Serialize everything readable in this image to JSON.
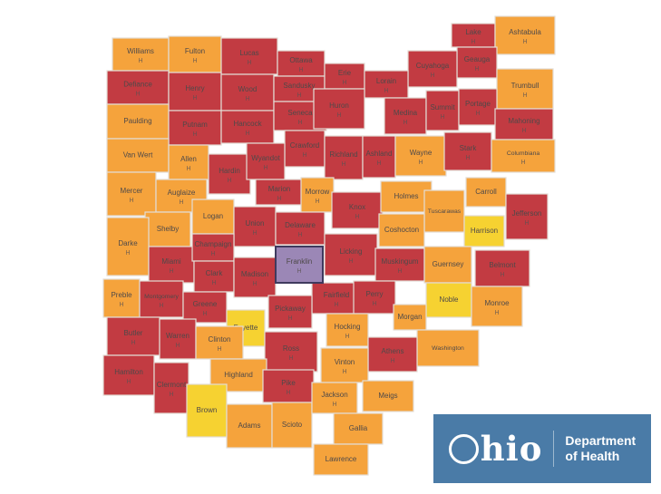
{
  "map": {
    "region_name": "Ohio",
    "marker_label": "H",
    "colors": {
      "red": "#c23b42",
      "orange": "#f5a33c",
      "yellow": "#f6d231",
      "purple": "#9b87b6",
      "border": "#e3ddd6",
      "purple_border": "#3f3a5e",
      "label": "#4e4949"
    },
    "counties": [
      {
        "n": "Williams",
        "lv": "orange",
        "hf": true,
        "r": [
          124,
          42,
          62,
          36
        ]
      },
      {
        "n": "Fulton",
        "lv": "orange",
        "hf": true,
        "r": [
          186,
          40,
          58,
          40
        ]
      },
      {
        "n": "Lucas",
        "lv": "red",
        "hf": true,
        "r": [
          244,
          42,
          62,
          40
        ]
      },
      {
        "n": "Ottawa",
        "lv": "red",
        "hf": true,
        "r": [
          306,
          56,
          52,
          28
        ]
      },
      {
        "n": "Lake",
        "lv": "red",
        "hf": true,
        "r": [
          498,
          26,
          48,
          26
        ]
      },
      {
        "n": "Ashtabula",
        "lv": "orange",
        "hf": true,
        "r": [
          546,
          18,
          66,
          42
        ]
      },
      {
        "n": "Geauga",
        "lv": "red",
        "hf": true,
        "r": [
          504,
          52,
          44,
          34
        ]
      },
      {
        "n": "Cuyahoga",
        "lv": "red",
        "hf": true,
        "r": [
          450,
          56,
          54,
          40
        ]
      },
      {
        "n": "Defiance",
        "lv": "red",
        "hf": true,
        "r": [
          118,
          78,
          68,
          37
        ]
      },
      {
        "n": "Henry",
        "lv": "red",
        "hf": true,
        "r": [
          186,
          80,
          58,
          42
        ]
      },
      {
        "n": "Wood",
        "lv": "red",
        "hf": true,
        "r": [
          244,
          82,
          58,
          40
        ]
      },
      {
        "n": "Sandusky",
        "lv": "red",
        "hf": true,
        "r": [
          302,
          84,
          56,
          28
        ]
      },
      {
        "n": "Erie",
        "lv": "red",
        "hf": true,
        "r": [
          358,
          70,
          44,
          28
        ]
      },
      {
        "n": "Lorain",
        "lv": "red",
        "hf": true,
        "r": [
          402,
          78,
          48,
          30
        ]
      },
      {
        "n": "Trumbull",
        "lv": "orange",
        "hf": true,
        "r": [
          548,
          76,
          62,
          44
        ]
      },
      {
        "n": "Medina",
        "lv": "red",
        "hf": true,
        "r": [
          424,
          108,
          46,
          40
        ]
      },
      {
        "n": "Summit",
        "lv": "red",
        "hf": true,
        "r": [
          470,
          100,
          36,
          44
        ]
      },
      {
        "n": "Portage",
        "lv": "red",
        "hf": true,
        "r": [
          506,
          98,
          42,
          40
        ]
      },
      {
        "n": "Mahoning",
        "lv": "red",
        "hf": true,
        "r": [
          546,
          120,
          64,
          34
        ]
      },
      {
        "n": "Paulding",
        "lv": "orange",
        "hf": false,
        "r": [
          118,
          115,
          68,
          38
        ]
      },
      {
        "n": "Putnam",
        "lv": "red",
        "hf": true,
        "r": [
          186,
          122,
          58,
          38
        ]
      },
      {
        "n": "Hancock",
        "lv": "red",
        "hf": true,
        "r": [
          244,
          122,
          58,
          36
        ]
      },
      {
        "n": "Seneca",
        "lv": "red",
        "hf": true,
        "r": [
          302,
          112,
          58,
          32
        ]
      },
      {
        "n": "Huron",
        "lv": "red",
        "hf": true,
        "r": [
          346,
          98,
          56,
          44
        ]
      },
      {
        "n": "Crawford",
        "lv": "red",
        "hf": true,
        "r": [
          314,
          144,
          44,
          40
        ]
      },
      {
        "n": "Richland",
        "lv": "red",
        "hf": true,
        "r": [
          358,
          150,
          42,
          48
        ]
      },
      {
        "n": "Ashland",
        "lv": "red",
        "hf": true,
        "r": [
          400,
          150,
          36,
          46
        ]
      },
      {
        "n": "Wayne",
        "lv": "orange",
        "hf": true,
        "r": [
          436,
          150,
          56,
          44
        ]
      },
      {
        "n": "Stark",
        "lv": "red",
        "hf": true,
        "r": [
          490,
          146,
          52,
          42
        ]
      },
      {
        "n": "Columbiana",
        "lv": "orange",
        "hf": true,
        "r": [
          542,
          154,
          70,
          36
        ]
      },
      {
        "n": "Van Wert",
        "lv": "orange",
        "hf": false,
        "r": [
          118,
          153,
          68,
          37
        ]
      },
      {
        "n": "Allen",
        "lv": "orange",
        "hf": true,
        "r": [
          186,
          160,
          44,
          38
        ]
      },
      {
        "n": "Hardin",
        "lv": "red",
        "hf": true,
        "r": [
          230,
          170,
          46,
          44
        ]
      },
      {
        "n": "Wyandot",
        "lv": "red",
        "hf": true,
        "r": [
          272,
          158,
          42,
          40
        ]
      },
      {
        "n": "Mercer",
        "lv": "orange",
        "hf": true,
        "r": [
          118,
          190,
          54,
          48
        ]
      },
      {
        "n": "Auglaize",
        "lv": "orange",
        "hf": true,
        "r": [
          172,
          198,
          56,
          36
        ]
      },
      {
        "n": "Marion",
        "lv": "red",
        "hf": true,
        "r": [
          282,
          198,
          52,
          28
        ]
      },
      {
        "n": "Morrow",
        "lv": "orange",
        "hf": true,
        "r": [
          332,
          196,
          36,
          38
        ]
      },
      {
        "n": "Knox",
        "lv": "red",
        "hf": true,
        "r": [
          366,
          212,
          56,
          40
        ]
      },
      {
        "n": "Holmes",
        "lv": "orange",
        "hf": false,
        "r": [
          420,
          200,
          56,
          34
        ]
      },
      {
        "n": "Tuscarawas",
        "lv": "orange",
        "hf": false,
        "r": [
          468,
          210,
          44,
          46
        ]
      },
      {
        "n": "Carroll",
        "lv": "orange",
        "hf": false,
        "r": [
          514,
          196,
          44,
          32
        ]
      },
      {
        "n": "Jefferson",
        "lv": "red",
        "hf": true,
        "r": [
          558,
          214,
          46,
          50
        ]
      },
      {
        "n": "Harrison",
        "lv": "yellow",
        "hf": false,
        "r": [
          512,
          238,
          44,
          34
        ]
      },
      {
        "n": "Shelby",
        "lv": "orange",
        "hf": false,
        "r": [
          160,
          234,
          50,
          38
        ]
      },
      {
        "n": "Logan",
        "lv": "orange",
        "hf": false,
        "r": [
          212,
          220,
          46,
          38
        ]
      },
      {
        "n": "Union",
        "lv": "red",
        "hf": true,
        "r": [
          258,
          228,
          46,
          44
        ]
      },
      {
        "n": "Delaware",
        "lv": "red",
        "hf": true,
        "r": [
          304,
          234,
          54,
          36
        ]
      },
      {
        "n": "Licking",
        "lv": "red",
        "hf": true,
        "r": [
          358,
          258,
          58,
          46
        ]
      },
      {
        "n": "Coshocton",
        "lv": "orange",
        "hf": false,
        "r": [
          418,
          236,
          50,
          36
        ]
      },
      {
        "n": "Muskingum",
        "lv": "red",
        "hf": true,
        "r": [
          414,
          274,
          54,
          36
        ]
      },
      {
        "n": "Guernsey",
        "lv": "orange",
        "hf": false,
        "r": [
          468,
          272,
          52,
          40
        ]
      },
      {
        "n": "Belmont",
        "lv": "red",
        "hf": true,
        "r": [
          524,
          276,
          60,
          40
        ]
      },
      {
        "n": "Darke",
        "lv": "orange",
        "hf": true,
        "r": [
          118,
          240,
          46,
          64
        ]
      },
      {
        "n": "Miami",
        "lv": "red",
        "hf": true,
        "r": [
          164,
          272,
          50,
          40
        ]
      },
      {
        "n": "Champaign",
        "lv": "red",
        "hf": true,
        "r": [
          212,
          258,
          46,
          30
        ]
      },
      {
        "n": "Clark",
        "lv": "red",
        "hf": true,
        "r": [
          214,
          288,
          44,
          34
        ]
      },
      {
        "n": "Madison",
        "lv": "red",
        "hf": true,
        "r": [
          258,
          284,
          46,
          44
        ]
      },
      {
        "n": "Fairfield",
        "lv": "red",
        "hf": true,
        "r": [
          344,
          312,
          54,
          34
        ]
      },
      {
        "n": "Perry",
        "lv": "red",
        "hf": true,
        "r": [
          390,
          310,
          46,
          36
        ]
      },
      {
        "n": "Noble",
        "lv": "yellow",
        "hf": false,
        "r": [
          470,
          312,
          50,
          38
        ]
      },
      {
        "n": "Monroe",
        "lv": "orange",
        "hf": true,
        "r": [
          520,
          316,
          56,
          44
        ]
      },
      {
        "n": "Morgan",
        "lv": "orange",
        "hf": false,
        "r": [
          434,
          336,
          36,
          28
        ]
      },
      {
        "n": "Washington",
        "lv": "orange",
        "hf": false,
        "r": [
          460,
          364,
          68,
          40
        ]
      },
      {
        "n": "Preble",
        "lv": "orange",
        "hf": true,
        "r": [
          114,
          308,
          40,
          42
        ]
      },
      {
        "n": "Montgomery",
        "lv": "red",
        "hf": true,
        "r": [
          154,
          310,
          48,
          40
        ]
      },
      {
        "n": "Greene",
        "lv": "red",
        "hf": true,
        "r": [
          202,
          322,
          48,
          34
        ]
      },
      {
        "n": "Fayette",
        "lv": "yellow",
        "hf": false,
        "r": [
          250,
          342,
          42,
          40
        ]
      },
      {
        "n": "Pickaway",
        "lv": "red",
        "hf": true,
        "r": [
          296,
          326,
          48,
          36
        ]
      },
      {
        "n": "Butler",
        "lv": "red",
        "hf": true,
        "r": [
          118,
          350,
          58,
          42
        ]
      },
      {
        "n": "Warren",
        "lv": "red",
        "hf": true,
        "r": [
          176,
          352,
          40,
          44
        ]
      },
      {
        "n": "Clinton",
        "lv": "orange",
        "hf": true,
        "r": [
          216,
          360,
          52,
          36
        ]
      },
      {
        "n": "Ross",
        "lv": "red",
        "hf": true,
        "r": [
          292,
          366,
          58,
          44
        ]
      },
      {
        "n": "Hocking",
        "lv": "orange",
        "hf": true,
        "r": [
          360,
          346,
          46,
          36
        ]
      },
      {
        "n": "Athens",
        "lv": "red",
        "hf": true,
        "r": [
          406,
          372,
          54,
          38
        ]
      },
      {
        "n": "Hamilton",
        "lv": "red",
        "hf": true,
        "r": [
          114,
          392,
          56,
          44
        ]
      },
      {
        "n": "Clermont",
        "lv": "red",
        "hf": true,
        "r": [
          170,
          400,
          38,
          56
        ]
      },
      {
        "n": "Highland",
        "lv": "orange",
        "hf": false,
        "r": [
          232,
          396,
          62,
          36
        ]
      },
      {
        "n": "Brown",
        "lv": "yellow",
        "hf": false,
        "r": [
          206,
          424,
          44,
          58
        ]
      },
      {
        "n": "Adams",
        "lv": "orange",
        "hf": false,
        "r": [
          250,
          446,
          50,
          48
        ]
      },
      {
        "n": "Pike",
        "lv": "red",
        "hf": true,
        "r": [
          290,
          408,
          56,
          36
        ]
      },
      {
        "n": "Scioto",
        "lv": "orange",
        "hf": false,
        "r": [
          300,
          444,
          44,
          50
        ]
      },
      {
        "n": "Vinton",
        "lv": "orange",
        "hf": true,
        "r": [
          354,
          384,
          52,
          38
        ]
      },
      {
        "n": "Jackson",
        "lv": "orange",
        "hf": true,
        "r": [
          344,
          422,
          50,
          34
        ]
      },
      {
        "n": "Meigs",
        "lv": "orange",
        "hf": false,
        "r": [
          400,
          420,
          56,
          34
        ]
      },
      {
        "n": "Gallia",
        "lv": "orange",
        "hf": false,
        "r": [
          368,
          456,
          54,
          34
        ]
      },
      {
        "n": "Lawrence",
        "lv": "orange",
        "hf": false,
        "r": [
          346,
          490,
          60,
          34
        ]
      },
      {
        "n": "Franklin",
        "lv": "purple",
        "hf": true,
        "r": [
          304,
          272,
          52,
          40
        ]
      }
    ]
  },
  "logo": {
    "brand": "Ohio",
    "brand_suffix": "hio",
    "dept_line1": "Department",
    "dept_line2": "of Health",
    "bg_color": "#4a7ba7"
  }
}
